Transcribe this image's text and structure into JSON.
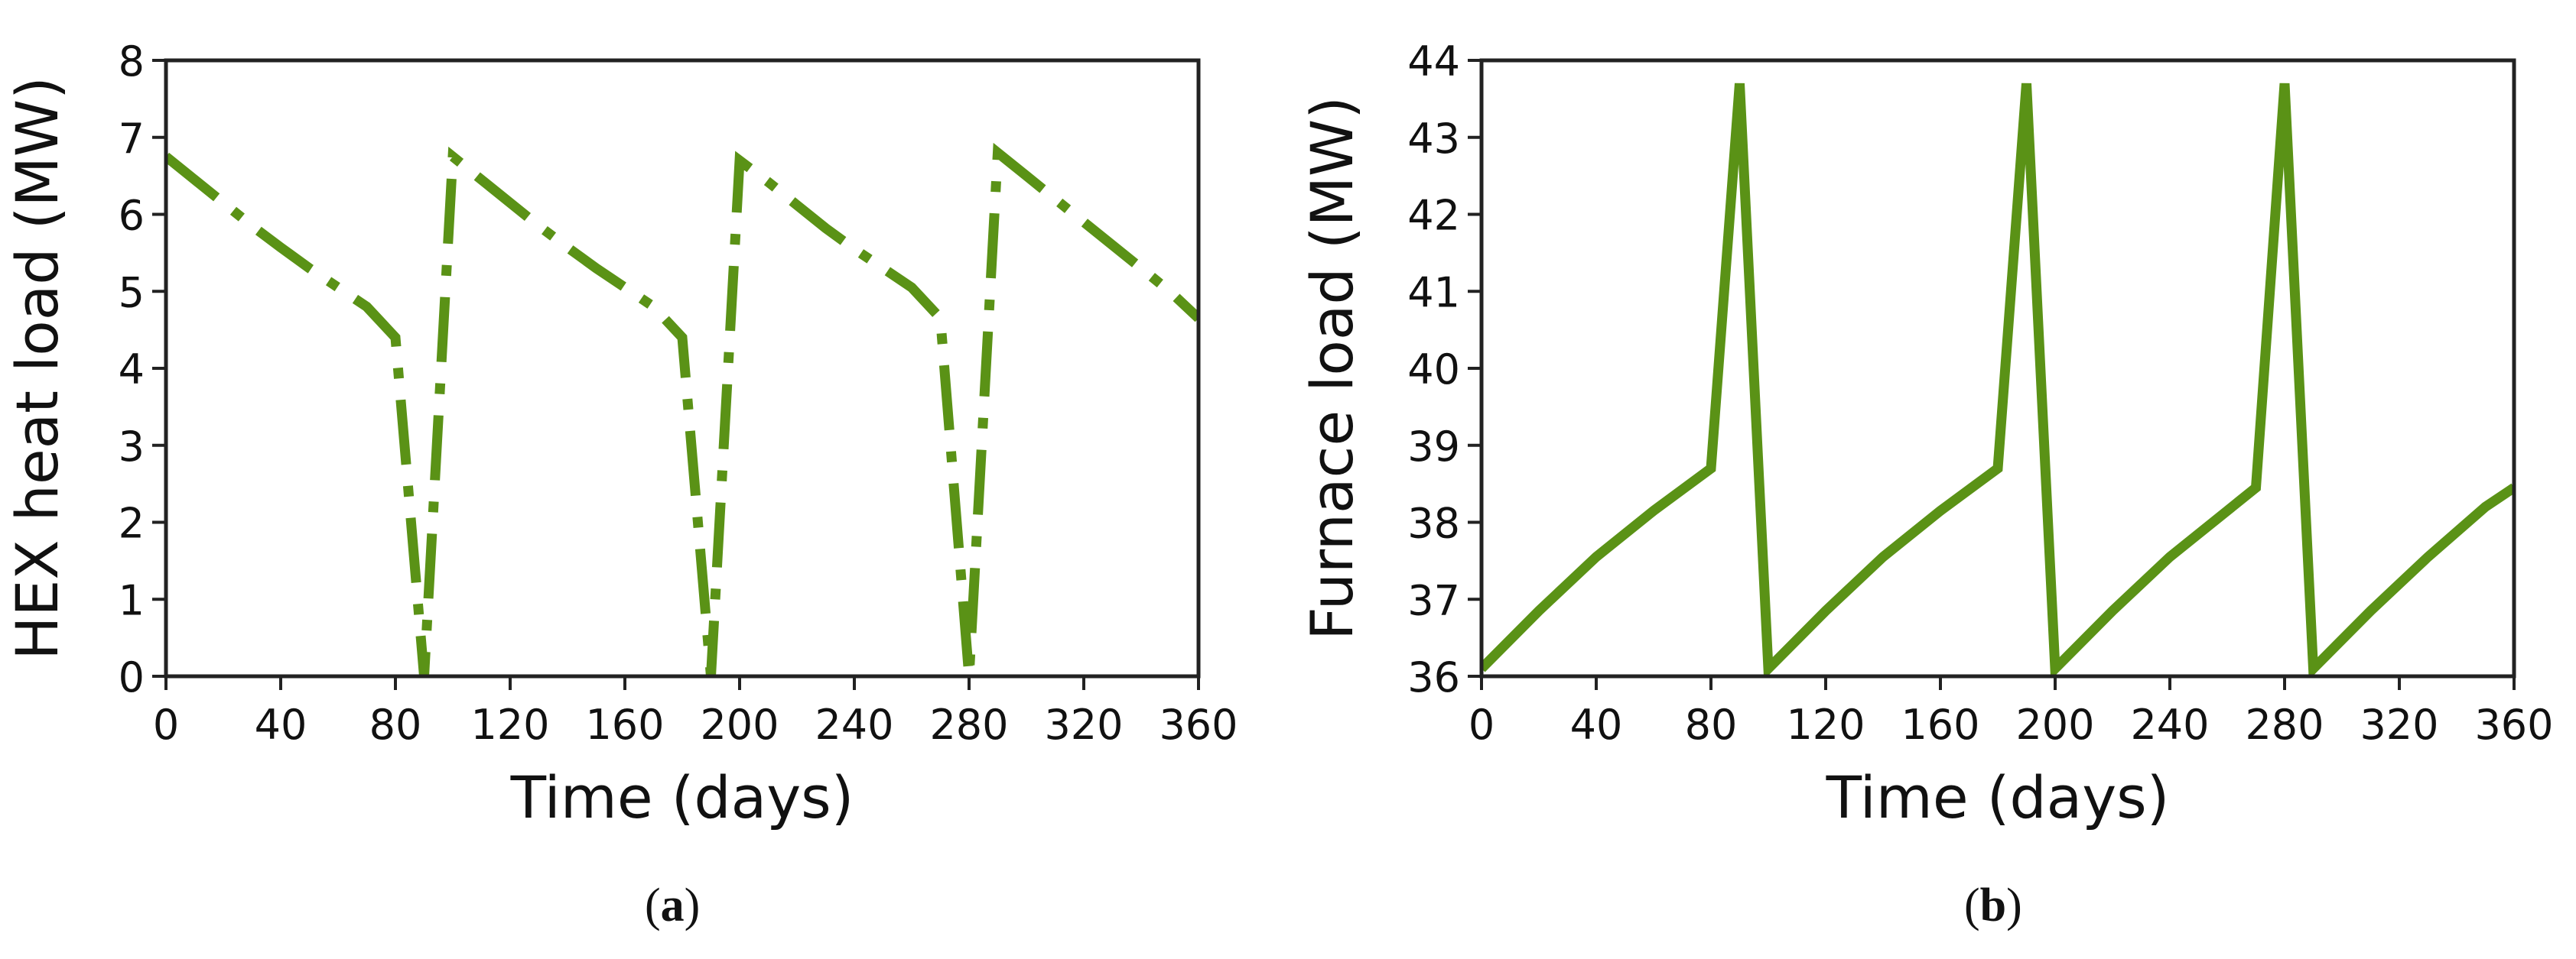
{
  "figure": {
    "panels": [
      {
        "id": "a",
        "caption_open": "(",
        "caption_letter": "a",
        "caption_close": ")"
      },
      {
        "id": "b",
        "caption_open": "(",
        "caption_letter": "b",
        "caption_close": ")"
      }
    ],
    "line_color": "#5a9216",
    "axis_color": "#222222"
  },
  "chart_data": [
    {
      "type": "line",
      "panel": "a",
      "title": "",
      "xlabel": "Time (days)",
      "ylabel": "HEX heat load (MW)",
      "xlim": [
        0,
        360
      ],
      "ylim": [
        0,
        8
      ],
      "xticks": [
        0,
        40,
        80,
        120,
        160,
        200,
        240,
        280,
        320,
        360
      ],
      "yticks": [
        0,
        1,
        2,
        3,
        4,
        5,
        6,
        7,
        8
      ],
      "line_style": "dash-dot",
      "grid": false,
      "legend": null,
      "series": [
        {
          "name": "HEX heat load",
          "x": [
            0,
            10,
            20,
            30,
            40,
            50,
            60,
            70,
            80,
            90,
            100,
            110,
            120,
            130,
            140,
            150,
            160,
            170,
            180,
            190,
            200,
            210,
            220,
            230,
            240,
            250,
            260,
            270,
            280,
            290,
            300,
            310,
            320,
            330,
            340,
            350,
            360
          ],
          "y": [
            6.75,
            6.45,
            6.15,
            5.85,
            5.57,
            5.3,
            5.05,
            4.8,
            4.4,
            0.0,
            6.75,
            6.45,
            6.15,
            5.85,
            5.57,
            5.3,
            5.05,
            4.8,
            4.4,
            0.0,
            6.7,
            6.42,
            6.12,
            5.82,
            5.55,
            5.3,
            5.05,
            4.65,
            0.0,
            6.8,
            6.5,
            6.2,
            5.9,
            5.6,
            5.3,
            5.0,
            4.65
          ]
        }
      ]
    },
    {
      "type": "line",
      "panel": "b",
      "title": "",
      "xlabel": "Time (days)",
      "ylabel": "Furnace load (MW)",
      "xlim": [
        0,
        360
      ],
      "ylim": [
        36,
        44
      ],
      "xticks": [
        0,
        40,
        80,
        120,
        160,
        200,
        240,
        280,
        320,
        360
      ],
      "yticks": [
        36,
        37,
        38,
        39,
        40,
        41,
        42,
        43,
        44
      ],
      "line_style": "solid",
      "grid": false,
      "legend": null,
      "series": [
        {
          "name": "Furnace load",
          "x": [
            0,
            20,
            40,
            60,
            80,
            90,
            100,
            120,
            140,
            160,
            180,
            190,
            200,
            220,
            240,
            260,
            270,
            280,
            290,
            310,
            330,
            350,
            360
          ],
          "y": [
            36.1,
            36.85,
            37.55,
            38.15,
            38.7,
            43.7,
            36.1,
            36.85,
            37.55,
            38.15,
            38.7,
            43.7,
            36.1,
            36.85,
            37.55,
            38.15,
            38.45,
            43.7,
            36.1,
            36.85,
            37.55,
            38.2,
            38.45
          ]
        }
      ]
    }
  ]
}
